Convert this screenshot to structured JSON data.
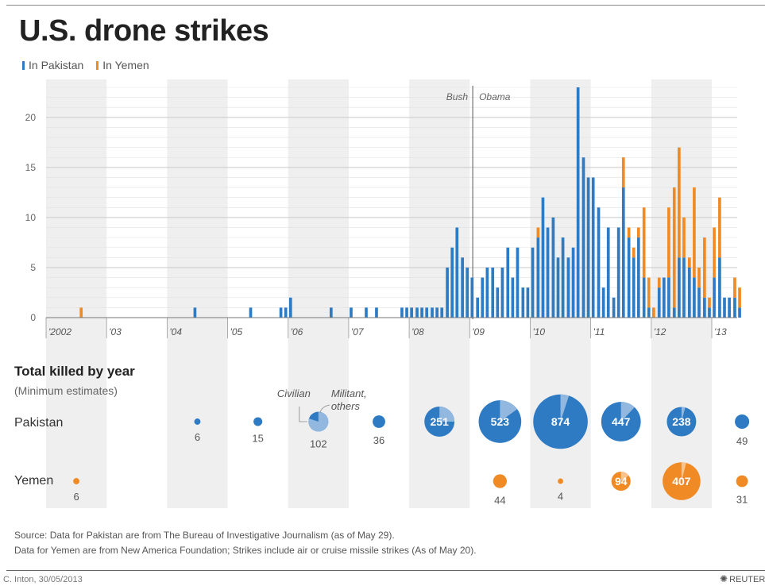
{
  "header": {
    "title": "U.S. drone strikes",
    "legend": [
      {
        "label": "In Pakistan",
        "color": "#2e7bc4"
      },
      {
        "label": "In Yemen",
        "color": "#f08a24"
      }
    ]
  },
  "colors": {
    "pakistan": "#2e7bc4",
    "yemen": "#f08a24",
    "civilian_pakistan": "#93b8e0",
    "civilian_yemen": "#f7c38f"
  },
  "chart_data": {
    "type": "bar",
    "ylim": [
      0,
      23
    ],
    "yticks": [
      0,
      5,
      10,
      15,
      20
    ],
    "x_start": 2002.0,
    "x_end": 2013.42,
    "x_tick_labels": [
      {
        "year": 2002,
        "label": "'2002"
      },
      {
        "year": 2003,
        "label": "'03"
      },
      {
        "year": 2004,
        "label": "'04"
      },
      {
        "year": 2005,
        "label": "'05"
      },
      {
        "year": 2006,
        "label": "'06"
      },
      {
        "year": 2007,
        "label": "'07"
      },
      {
        "year": 2008,
        "label": "'08"
      },
      {
        "year": 2009,
        "label": "'09"
      },
      {
        "year": 2010,
        "label": "'10"
      },
      {
        "year": 2011,
        "label": "'11"
      },
      {
        "year": 2012,
        "label": "'12"
      },
      {
        "year": 2013,
        "label": "'13"
      }
    ],
    "annotations": [
      {
        "text": "Bush",
        "year": 2009.05,
        "side": "left"
      },
      {
        "text": "Obama",
        "year": 2009.05,
        "side": "right"
      }
    ],
    "bars": [
      {
        "year": 2002.58,
        "pakistan": 0,
        "yemen": 1
      },
      {
        "year": 2004.46,
        "pakistan": 1,
        "yemen": 0
      },
      {
        "year": 2005.38,
        "pakistan": 1,
        "yemen": 0
      },
      {
        "year": 2005.88,
        "pakistan": 1,
        "yemen": 0
      },
      {
        "year": 2005.96,
        "pakistan": 1,
        "yemen": 0
      },
      {
        "year": 2006.04,
        "pakistan": 2,
        "yemen": 0
      },
      {
        "year": 2006.71,
        "pakistan": 1,
        "yemen": 0
      },
      {
        "year": 2007.04,
        "pakistan": 1,
        "yemen": 0
      },
      {
        "year": 2007.29,
        "pakistan": 1,
        "yemen": 0
      },
      {
        "year": 2007.46,
        "pakistan": 1,
        "yemen": 0
      },
      {
        "year": 2007.88,
        "pakistan": 1,
        "yemen": 0
      },
      {
        "year": 2007.96,
        "pakistan": 1,
        "yemen": 0
      },
      {
        "year": 2008.04,
        "pakistan": 1,
        "yemen": 0
      },
      {
        "year": 2008.13,
        "pakistan": 1,
        "yemen": 0
      },
      {
        "year": 2008.21,
        "pakistan": 1,
        "yemen": 0
      },
      {
        "year": 2008.29,
        "pakistan": 1,
        "yemen": 0
      },
      {
        "year": 2008.38,
        "pakistan": 1,
        "yemen": 0
      },
      {
        "year": 2008.46,
        "pakistan": 1,
        "yemen": 0
      },
      {
        "year": 2008.54,
        "pakistan": 1,
        "yemen": 0
      },
      {
        "year": 2008.63,
        "pakistan": 5,
        "yemen": 0
      },
      {
        "year": 2008.71,
        "pakistan": 7,
        "yemen": 0
      },
      {
        "year": 2008.79,
        "pakistan": 9,
        "yemen": 0
      },
      {
        "year": 2008.88,
        "pakistan": 6,
        "yemen": 0
      },
      {
        "year": 2008.96,
        "pakistan": 5,
        "yemen": 0
      },
      {
        "year": 2009.04,
        "pakistan": 4,
        "yemen": 0
      },
      {
        "year": 2009.13,
        "pakistan": 2,
        "yemen": 0
      },
      {
        "year": 2009.21,
        "pakistan": 4,
        "yemen": 0
      },
      {
        "year": 2009.29,
        "pakistan": 5,
        "yemen": 0
      },
      {
        "year": 2009.38,
        "pakistan": 5,
        "yemen": 0
      },
      {
        "year": 2009.46,
        "pakistan": 3,
        "yemen": 0
      },
      {
        "year": 2009.54,
        "pakistan": 5,
        "yemen": 0
      },
      {
        "year": 2009.63,
        "pakistan": 7,
        "yemen": 0
      },
      {
        "year": 2009.71,
        "pakistan": 4,
        "yemen": 0
      },
      {
        "year": 2009.79,
        "pakistan": 7,
        "yemen": 0
      },
      {
        "year": 2009.88,
        "pakistan": 3,
        "yemen": 0
      },
      {
        "year": 2009.96,
        "pakistan": 3,
        "yemen": 0
      },
      {
        "year": 2010.04,
        "pakistan": 7,
        "yemen": 0
      },
      {
        "year": 2010.13,
        "pakistan": 8,
        "yemen": 1
      },
      {
        "year": 2010.21,
        "pakistan": 12,
        "yemen": 0
      },
      {
        "year": 2010.29,
        "pakistan": 9,
        "yemen": 0
      },
      {
        "year": 2010.38,
        "pakistan": 10,
        "yemen": 0
      },
      {
        "year": 2010.46,
        "pakistan": 6,
        "yemen": 0
      },
      {
        "year": 2010.54,
        "pakistan": 8,
        "yemen": 0
      },
      {
        "year": 2010.63,
        "pakistan": 6,
        "yemen": 0
      },
      {
        "year": 2010.71,
        "pakistan": 7,
        "yemen": 0
      },
      {
        "year": 2010.79,
        "pakistan": 23,
        "yemen": 0
      },
      {
        "year": 2010.88,
        "pakistan": 16,
        "yemen": 0
      },
      {
        "year": 2010.96,
        "pakistan": 14,
        "yemen": 0
      },
      {
        "year": 2011.04,
        "pakistan": 14,
        "yemen": 0
      },
      {
        "year": 2011.13,
        "pakistan": 11,
        "yemen": 0
      },
      {
        "year": 2011.21,
        "pakistan": 3,
        "yemen": 0
      },
      {
        "year": 2011.29,
        "pakistan": 9,
        "yemen": 0
      },
      {
        "year": 2011.38,
        "pakistan": 2,
        "yemen": 0
      },
      {
        "year": 2011.46,
        "pakistan": 9,
        "yemen": 0
      },
      {
        "year": 2011.54,
        "pakistan": 13,
        "yemen": 3
      },
      {
        "year": 2011.63,
        "pakistan": 8,
        "yemen": 1
      },
      {
        "year": 2011.71,
        "pakistan": 6,
        "yemen": 1
      },
      {
        "year": 2011.79,
        "pakistan": 8,
        "yemen": 1
      },
      {
        "year": 2011.88,
        "pakistan": 4,
        "yemen": 7
      },
      {
        "year": 2011.96,
        "pakistan": 1,
        "yemen": 3
      },
      {
        "year": 2012.04,
        "pakistan": 0,
        "yemen": 1
      },
      {
        "year": 2012.13,
        "pakistan": 3,
        "yemen": 1
      },
      {
        "year": 2012.21,
        "pakistan": 4,
        "yemen": 0
      },
      {
        "year": 2012.29,
        "pakistan": 4,
        "yemen": 7
      },
      {
        "year": 2012.38,
        "pakistan": 1,
        "yemen": 12
      },
      {
        "year": 2012.46,
        "pakistan": 6,
        "yemen": 11
      },
      {
        "year": 2012.54,
        "pakistan": 6,
        "yemen": 4
      },
      {
        "year": 2012.63,
        "pakistan": 5,
        "yemen": 1
      },
      {
        "year": 2012.71,
        "pakistan": 4,
        "yemen": 9
      },
      {
        "year": 2012.79,
        "pakistan": 3,
        "yemen": 2
      },
      {
        "year": 2012.88,
        "pakistan": 2,
        "yemen": 6
      },
      {
        "year": 2012.96,
        "pakistan": 1,
        "yemen": 1
      },
      {
        "year": 2013.04,
        "pakistan": 4,
        "yemen": 5
      },
      {
        "year": 2013.13,
        "pakistan": 6,
        "yemen": 6
      },
      {
        "year": 2013.21,
        "pakistan": 2,
        "yemen": 0
      },
      {
        "year": 2013.29,
        "pakistan": 2,
        "yemen": 0
      },
      {
        "year": 2013.38,
        "pakistan": 2,
        "yemen": 2
      },
      {
        "year": 2013.46,
        "pakistan": 1,
        "yemen": 2
      }
    ],
    "killed_by_year": {
      "pakistan": [
        {
          "year": 2004,
          "total": 6,
          "label_inside": false
        },
        {
          "year": 2005,
          "total": 15,
          "label_inside": false
        },
        {
          "year": 2006,
          "total": 102,
          "label_inside": false,
          "civilian_share": 0.8
        },
        {
          "year": 2007,
          "total": 36,
          "label_inside": false
        },
        {
          "year": 2008,
          "total": 251,
          "label_inside": true,
          "civilian_share": 0.25
        },
        {
          "year": 2009,
          "total": 523,
          "label_inside": true,
          "civilian_share": 0.15
        },
        {
          "year": 2010,
          "total": 874,
          "label_inside": true,
          "civilian_share": 0.05
        },
        {
          "year": 2011,
          "total": 447,
          "label_inside": true,
          "civilian_share": 0.12
        },
        {
          "year": 2012,
          "total": 238,
          "label_inside": true,
          "civilian_share": 0.04
        },
        {
          "year": 2013,
          "total": 49,
          "label_inside": false
        }
      ],
      "yemen": [
        {
          "year": 2002,
          "total": 6,
          "label_inside": false
        },
        {
          "year": 2009,
          "total": 44,
          "label_inside": false
        },
        {
          "year": 2010,
          "total": 4,
          "label_inside": false
        },
        {
          "year": 2011,
          "total": 94,
          "label_inside": true,
          "civilian_share": 0.15
        },
        {
          "year": 2012,
          "total": 407,
          "label_inside": true,
          "civilian_share": 0.04
        },
        {
          "year": 2013,
          "total": 31,
          "label_inside": false
        }
      ]
    },
    "pie_key": {
      "civilian": "Civilian",
      "militant_line1": "Militant,",
      "militant_line2": "others"
    }
  },
  "killed": {
    "title": "Total killed by year",
    "subtitle": "(Minimum estimates)",
    "row_pakistan": "Pakistan",
    "row_yemen": "Yemen"
  },
  "source": {
    "line1": "Source: Data for Pakistan are from The Bureau of Investigative Journalism (as of May 29).",
    "line2": "Data for Yemen are from New America Foundation;  Strikes include air or cruise missile strikes (As of May 20)."
  },
  "footer": {
    "credit": "C. Inton, 30/05/2013",
    "logo": "REUTERS",
    "logo_icon": "reuters-dots-icon"
  }
}
